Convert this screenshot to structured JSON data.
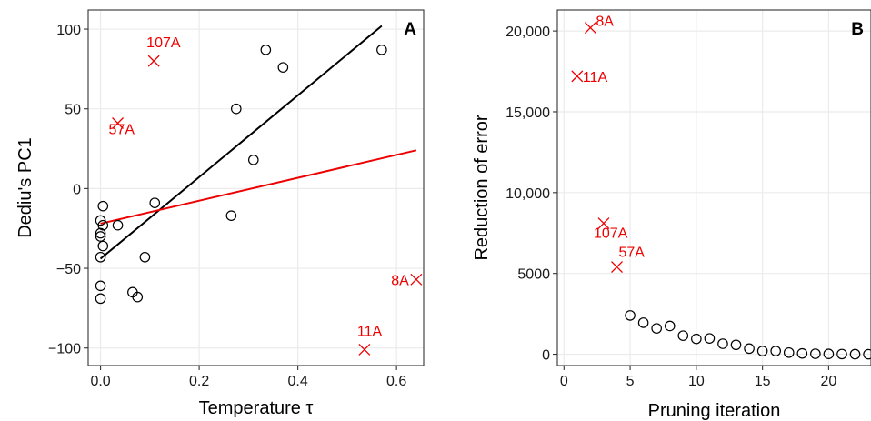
{
  "chart_data": [
    {
      "type": "scatter",
      "panel_label": "A",
      "xlabel": "Temperature τ",
      "ylabel": "Dediu's PC1",
      "xlim": [
        -0.025,
        0.655
      ],
      "ylim": [
        -111,
        112
      ],
      "x_ticks": [
        0.0,
        0.2,
        0.4,
        0.6
      ],
      "x_tick_labels": [
        "0.0",
        "0.2",
        "0.4",
        "0.6"
      ],
      "y_ticks": [
        100,
        50,
        0,
        -50,
        -100
      ],
      "y_tick_labels": [
        "100",
        "50",
        "0",
        "−50",
        "−100"
      ],
      "grid": true,
      "points": [
        {
          "x": 0.0,
          "y": -28
        },
        {
          "x": 0.0,
          "y": -30
        },
        {
          "x": 0.0,
          "y": -20
        },
        {
          "x": 0.0,
          "y": -43
        },
        {
          "x": 0.0,
          "y": -61
        },
        {
          "x": 0.0,
          "y": -69
        },
        {
          "x": 0.005,
          "y": -11
        },
        {
          "x": 0.005,
          "y": -23
        },
        {
          "x": 0.005,
          "y": -36
        },
        {
          "x": 0.035,
          "y": -23
        },
        {
          "x": 0.065,
          "y": -65
        },
        {
          "x": 0.075,
          "y": -68
        },
        {
          "x": 0.09,
          "y": -43
        },
        {
          "x": 0.11,
          "y": -9
        },
        {
          "x": 0.265,
          "y": -17
        },
        {
          "x": 0.275,
          "y": 50
        },
        {
          "x": 0.31,
          "y": 18
        },
        {
          "x": 0.335,
          "y": 87
        },
        {
          "x": 0.37,
          "y": 76
        },
        {
          "x": 0.57,
          "y": 87
        }
      ],
      "outliers": [
        {
          "label": "107A",
          "x": 0.108,
          "y": 80
        },
        {
          "label": "57A",
          "x": 0.035,
          "y": 41
        },
        {
          "label": "8A",
          "x": 0.64,
          "y": -57
        },
        {
          "label": "11A",
          "x": 0.535,
          "y": -101
        }
      ],
      "lines": [
        {
          "color": "#000000",
          "x": [
            0.0,
            0.57
          ],
          "y": [
            -44,
            102
          ]
        },
        {
          "color": "#ee0000",
          "x": [
            0.0,
            0.64
          ],
          "y": [
            -22,
            24
          ]
        }
      ]
    },
    {
      "type": "scatter",
      "panel_label": "B",
      "xlabel": "Pruning iteration",
      "ylabel": "Reduction of error",
      "xlim": [
        -0.5,
        23.2
      ],
      "ylim": [
        -700,
        21300
      ],
      "x_ticks": [
        0,
        5,
        10,
        15,
        20
      ],
      "x_tick_labels": [
        "0",
        "5",
        "10",
        "15",
        "20"
      ],
      "y_ticks": [
        0,
        5000,
        10000,
        15000,
        20000
      ],
      "y_tick_labels": [
        "0",
        "5000",
        "10,000",
        "15,000",
        "20,000"
      ],
      "grid": true,
      "points": [
        {
          "x": 5,
          "y": 2400
        },
        {
          "x": 6,
          "y": 1950
        },
        {
          "x": 7,
          "y": 1600
        },
        {
          "x": 8,
          "y": 1750
        },
        {
          "x": 9,
          "y": 1150
        },
        {
          "x": 10,
          "y": 950
        },
        {
          "x": 11,
          "y": 980
        },
        {
          "x": 12,
          "y": 650
        },
        {
          "x": 13,
          "y": 580
        },
        {
          "x": 14,
          "y": 350
        },
        {
          "x": 15,
          "y": 200
        },
        {
          "x": 16,
          "y": 200
        },
        {
          "x": 17,
          "y": 100
        },
        {
          "x": 18,
          "y": 50
        },
        {
          "x": 19,
          "y": 30
        },
        {
          "x": 20,
          "y": 20
        },
        {
          "x": 21,
          "y": 10
        },
        {
          "x": 22,
          "y": 5
        },
        {
          "x": 23,
          "y": 0
        }
      ],
      "outliers": [
        {
          "label": "8A",
          "x": 2,
          "y": 20200
        },
        {
          "label": "11A",
          "x": 1,
          "y": 17200
        },
        {
          "label": "107A",
          "x": 3,
          "y": 8100
        },
        {
          "label": "57A",
          "x": 4,
          "y": 5400
        }
      ]
    }
  ]
}
